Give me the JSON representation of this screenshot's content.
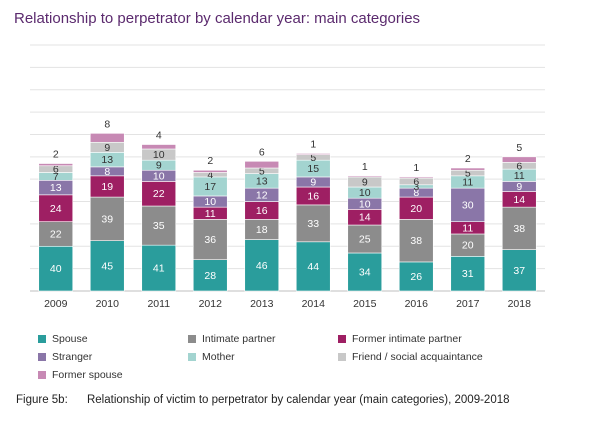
{
  "chart_data": {
    "type": "bar",
    "stacked": true,
    "title": "Relationship to perpetrator by calendar year: main categories",
    "categories": [
      "2009",
      "2010",
      "2011",
      "2012",
      "2013",
      "2014",
      "2015",
      "2016",
      "2017",
      "2018"
    ],
    "series": [
      {
        "name": "Spouse",
        "color": "#2a9d9c",
        "values": [
          40,
          45,
          41,
          28,
          46,
          44,
          34,
          26,
          31,
          37
        ]
      },
      {
        "name": "Intimate partner",
        "color": "#8c8c8c",
        "values": [
          22,
          39,
          35,
          36,
          18,
          33,
          25,
          38,
          20,
          38
        ]
      },
      {
        "name": "Former intimate partner",
        "color": "#9e1f63",
        "values": [
          24,
          19,
          22,
          11,
          16,
          16,
          14,
          20,
          11,
          14
        ]
      },
      {
        "name": "Stranger",
        "color": "#8a76a8",
        "values": [
          13,
          8,
          10,
          10,
          12,
          9,
          10,
          8,
          30,
          9
        ]
      },
      {
        "name": "Mother",
        "color": "#a3d4d0",
        "values": [
          7,
          13,
          9,
          17,
          13,
          15,
          10,
          3,
          11,
          11
        ]
      },
      {
        "name": "Friend / social acquaintance",
        "color": "#c8c8c8",
        "values": [
          6,
          9,
          10,
          4,
          5,
          5,
          9,
          6,
          5,
          6
        ]
      },
      {
        "name": "Former spouse",
        "color": "#c789b4",
        "values": [
          2,
          8,
          4,
          2,
          6,
          1,
          1,
          1,
          2,
          5
        ]
      }
    ],
    "ylim": [
      0,
      220
    ],
    "gridlines": true,
    "legend_position": "bottom"
  },
  "caption": {
    "label": "Figure 5b:",
    "text": "Relationship of victim to perpetrator by calendar year (main categories), 2009-2018"
  }
}
